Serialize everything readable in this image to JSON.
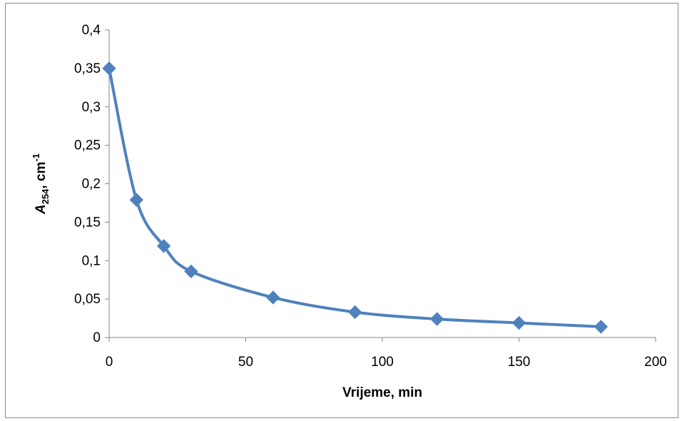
{
  "chart_data": {
    "type": "line",
    "smooth": true,
    "marker": "diamond",
    "x": [
      0,
      10,
      20,
      30,
      60,
      90,
      120,
      150,
      180
    ],
    "series": [
      {
        "values": [
          0.35,
          0.179,
          0.119,
          0.086,
          0.052,
          0.033,
          0.024,
          0.019,
          0.014
        ],
        "color": "#4f81bd"
      }
    ],
    "xlabel": "Vrijeme, min",
    "ylabel_main": "A",
    "ylabel_sub": "254",
    "ylabel_unit": ", cm",
    "ylabel_sup": "-1",
    "xlim": [
      0,
      200
    ],
    "ylim": [
      0,
      0.4
    ],
    "x_ticks": [
      "0",
      "50",
      "100",
      "150",
      "200"
    ],
    "y_ticks": [
      "0",
      "0,05",
      "0,1",
      "0,15",
      "0,2",
      "0,25",
      "0,3",
      "0,35",
      "0,4"
    ],
    "grid": false,
    "legend": "none",
    "axis_color": "#868686",
    "marker_color": "#4f81bd"
  }
}
